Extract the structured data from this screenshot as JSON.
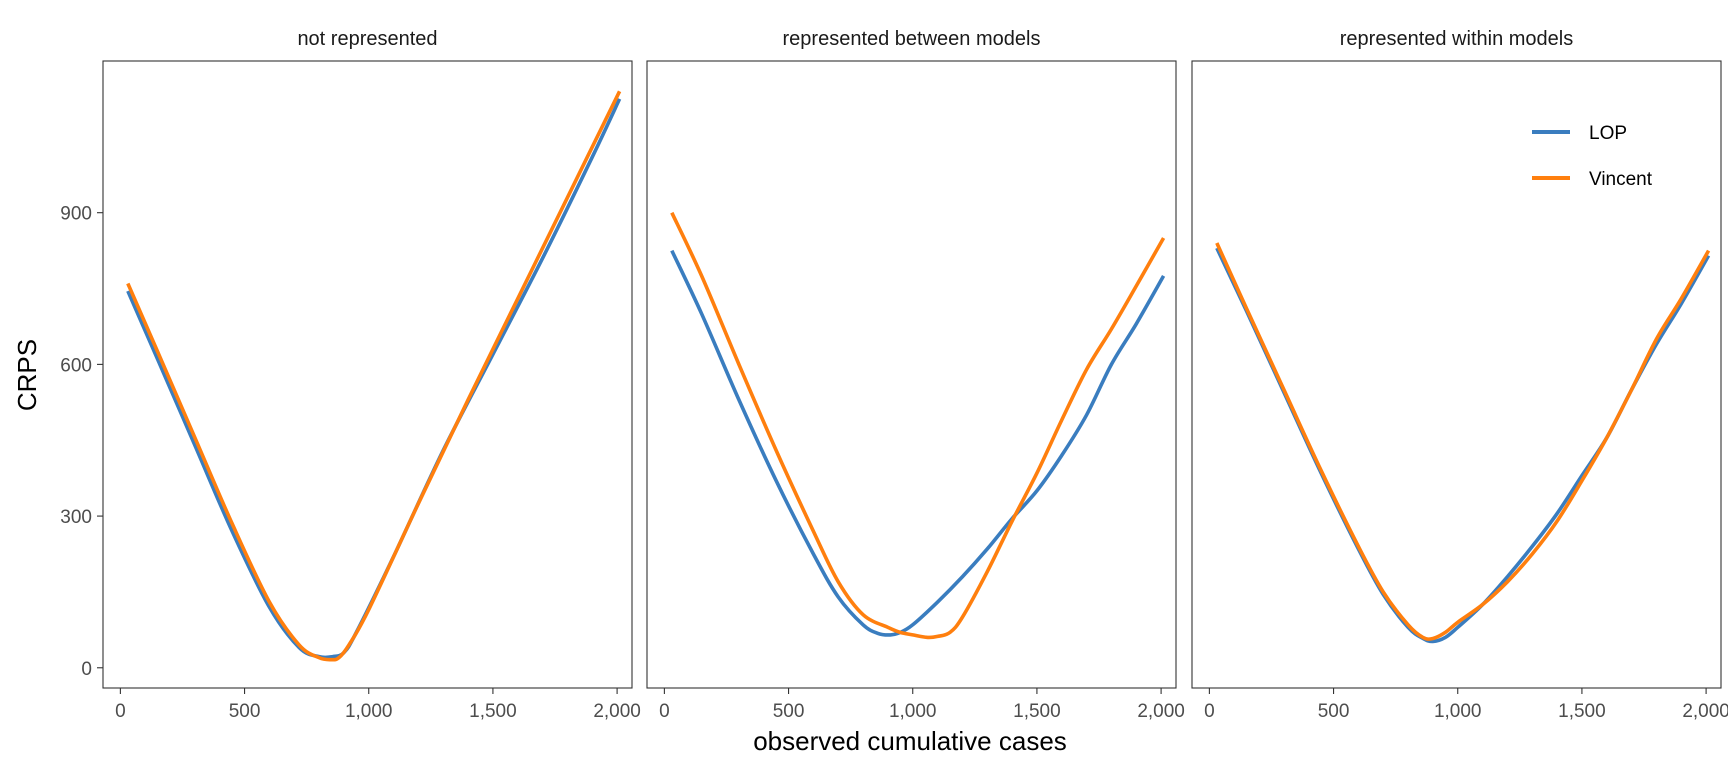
{
  "chart_data": {
    "type": "line",
    "ylabel": "CRPS",
    "xlabel": "observed cumulative cases",
    "xlim": [
      -70,
      2060
    ],
    "ylim": [
      -40,
      1200
    ],
    "x_ticks": [
      0,
      500,
      1000,
      1500,
      2000
    ],
    "x_tick_labels": [
      "0",
      "500",
      "1,000",
      "1,500",
      "2,000"
    ],
    "y_ticks": [
      0,
      300,
      600,
      900
    ],
    "y_tick_labels": [
      "0",
      "300",
      "600",
      "900"
    ],
    "grid": false,
    "legend_position": "top-right (inside last panel)",
    "colors": {
      "LOP": "#3a7dbf",
      "Vincent": "#ff7f0e"
    },
    "panels": [
      {
        "title": "not represented",
        "series": [
          {
            "name": "LOP",
            "points": [
              [
                30,
                745
              ],
              [
                150,
                610
              ],
              [
                300,
                440
              ],
              [
                450,
                270
              ],
              [
                600,
                120
              ],
              [
                720,
                40
              ],
              [
                800,
                22
              ],
              [
                855,
                22
              ],
              [
                900,
                30
              ],
              [
                950,
                70
              ],
              [
                1100,
                220
              ],
              [
                1300,
                430
              ],
              [
                1500,
                620
              ],
              [
                1700,
                810
              ],
              [
                1900,
                1010
              ],
              [
                2010,
                1125
              ]
            ]
          },
          {
            "name": "Vincent",
            "points": [
              [
                30,
                760
              ],
              [
                150,
                625
              ],
              [
                300,
                455
              ],
              [
                450,
                285
              ],
              [
                600,
                130
              ],
              [
                720,
                45
              ],
              [
                800,
                20
              ],
              [
                850,
                16
              ],
              [
                880,
                20
              ],
              [
                920,
                45
              ],
              [
                1000,
                115
              ],
              [
                1200,
                325
              ],
              [
                1400,
                530
              ],
              [
                1600,
                730
              ],
              [
                1800,
                930
              ],
              [
                2010,
                1140
              ]
            ]
          }
        ]
      },
      {
        "title": "represented between models",
        "series": [
          {
            "name": "LOP",
            "points": [
              [
                30,
                825
              ],
              [
                150,
                700
              ],
              [
                300,
                530
              ],
              [
                450,
                370
              ],
              [
                600,
                225
              ],
              [
                700,
                140
              ],
              [
                800,
                85
              ],
              [
                860,
                68
              ],
              [
                910,
                65
              ],
              [
                950,
                70
              ],
              [
                1000,
                85
              ],
              [
                1100,
                130
              ],
              [
                1200,
                180
              ],
              [
                1300,
                235
              ],
              [
                1400,
                295
              ],
              [
                1500,
                350
              ],
              [
                1600,
                420
              ],
              [
                1700,
                500
              ],
              [
                1800,
                600
              ],
              [
                1900,
                680
              ],
              [
                2010,
                775
              ]
            ]
          },
          {
            "name": "Vincent",
            "points": [
              [
                30,
                900
              ],
              [
                150,
                775
              ],
              [
                300,
                600
              ],
              [
                450,
                430
              ],
              [
                600,
                270
              ],
              [
                700,
                170
              ],
              [
                800,
                105
              ],
              [
                900,
                80
              ],
              [
                950,
                70
              ],
              [
                1000,
                65
              ],
              [
                1060,
                60
              ],
              [
                1100,
                62
              ],
              [
                1150,
                70
              ],
              [
                1200,
                100
              ],
              [
                1300,
                190
              ],
              [
                1400,
                290
              ],
              [
                1500,
                385
              ],
              [
                1600,
                490
              ],
              [
                1700,
                590
              ],
              [
                1800,
                670
              ],
              [
                1900,
                755
              ],
              [
                2010,
                850
              ]
            ]
          }
        ]
      },
      {
        "title": "represented within models",
        "series": [
          {
            "name": "LOP",
            "points": [
              [
                30,
                830
              ],
              [
                150,
                705
              ],
              [
                300,
                545
              ],
              [
                450,
                385
              ],
              [
                600,
                235
              ],
              [
                700,
                145
              ],
              [
                800,
                80
              ],
              [
                860,
                58
              ],
              [
                900,
                52
              ],
              [
                950,
                60
              ],
              [
                1000,
                80
              ],
              [
                1100,
                125
              ],
              [
                1200,
                180
              ],
              [
                1300,
                240
              ],
              [
                1400,
                305
              ],
              [
                1500,
                380
              ],
              [
                1600,
                455
              ],
              [
                1700,
                550
              ],
              [
                1800,
                640
              ],
              [
                1900,
                720
              ],
              [
                2010,
                815
              ]
            ]
          },
          {
            "name": "Vincent",
            "points": [
              [
                30,
                840
              ],
              [
                150,
                710
              ],
              [
                300,
                550
              ],
              [
                450,
                390
              ],
              [
                600,
                240
              ],
              [
                700,
                150
              ],
              [
                800,
                85
              ],
              [
                860,
                60
              ],
              [
                900,
                58
              ],
              [
                950,
                70
              ],
              [
                1000,
                90
              ],
              [
                1100,
                125
              ],
              [
                1200,
                170
              ],
              [
                1300,
                225
              ],
              [
                1400,
                290
              ],
              [
                1500,
                370
              ],
              [
                1600,
                455
              ],
              [
                1700,
                550
              ],
              [
                1800,
                650
              ],
              [
                1900,
                730
              ],
              [
                2010,
                825
              ]
            ]
          }
        ]
      }
    ],
    "legend": [
      "LOP",
      "Vincent"
    ]
  }
}
